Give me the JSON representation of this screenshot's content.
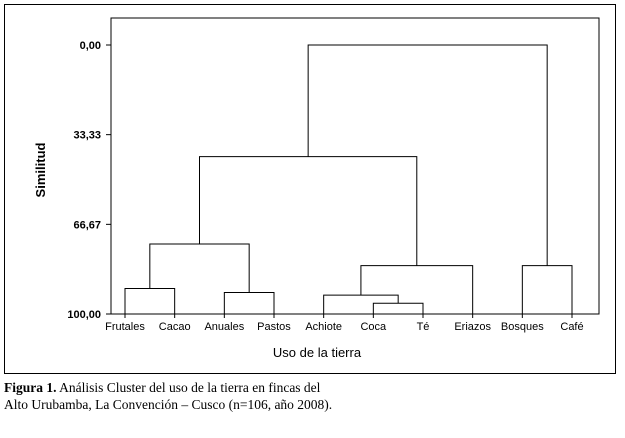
{
  "chart_data": {
    "type": "dendrogram",
    "xlabel": "Uso de la tierra",
    "ylabel": "Similitud",
    "ylim": [
      0,
      100
    ],
    "y_ticks": [
      "0,00",
      "33,33",
      "66,67",
      "100,00"
    ],
    "y_tick_values": [
      0,
      33.33,
      66.67,
      100
    ],
    "leaves": [
      "Frutales",
      "Cacao",
      "Anuales",
      "Pastos",
      "Achiote",
      "Coca",
      "Té",
      "Eriazos",
      "Bosques",
      "Café"
    ],
    "merges": [
      {
        "left": "leaf:5",
        "right": "leaf:6",
        "height": 96
      },
      {
        "left": "leaf:4",
        "right": "node:0",
        "height": 93
      },
      {
        "left": "leaf:2",
        "right": "leaf:3",
        "height": 92
      },
      {
        "left": "leaf:0",
        "right": "leaf:1",
        "height": 90.5
      },
      {
        "left": "leaf:8",
        "right": "leaf:9",
        "height": 82
      },
      {
        "left": "node:1",
        "right": "leaf:7",
        "height": 82
      },
      {
        "left": "node:3",
        "right": "node:2",
        "height": 74
      },
      {
        "left": "node:6",
        "right": "node:5",
        "height": 41.5
      },
      {
        "left": "node:7",
        "right": "node:4",
        "height": 0
      }
    ]
  },
  "caption": {
    "label": "Figura 1.",
    "text": " Análisis Cluster del uso de la tierra en fincas del Alto Urubamba, La Convención – Cusco (n=106, año 2008)."
  }
}
